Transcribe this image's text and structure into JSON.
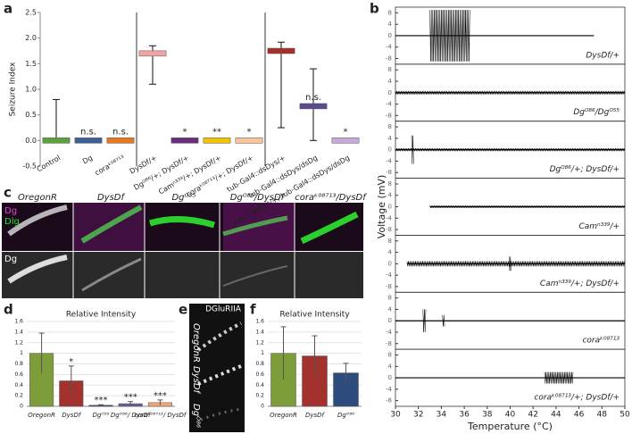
{
  "chart_data": [
    {
      "type": "errorbar",
      "panel": "a",
      "ylabel": "Seizure Index",
      "categories": [
        "Control",
        "Dg",
        "coraᵏ⁰⁸⁷¹³",
        "DysDf/+",
        "Dgᴼ⁸⁶/+; DysDf/+",
        "Camⁿ³³⁹/+; DysDf/+",
        "coraᵏ⁰⁸⁷¹³/+; DysDf/+",
        "tub-Gal4::dsDys/+",
        "tub-Gal4::dsDys/dsDg",
        "tub-Gal80ᵗˢ/+; tub-Gal4::dsDys/dsDg"
      ],
      "values": [
        0,
        0,
        0,
        1.7,
        0,
        0,
        0,
        1.75,
        0.67,
        0
      ],
      "lower": [
        0,
        null,
        null,
        1.1,
        null,
        null,
        null,
        0.25,
        0,
        null
      ],
      "upper": [
        0.8,
        null,
        null,
        1.85,
        null,
        null,
        null,
        1.92,
        1.4,
        null
      ],
      "annotations": [
        null,
        "n.s.",
        "n.s.",
        null,
        "*",
        "**",
        "*",
        null,
        "n.s.",
        "*"
      ],
      "colors": [
        "#5aa33c",
        "#3d5f97",
        "#e8771e",
        "#f2a3a3",
        "#6c2c7c",
        "#f2c200",
        "#f7c49c",
        "#a3302b",
        "#5b4b8c",
        "#c9a9d9"
      ],
      "ylim": [
        -0.5,
        2.5
      ],
      "yticks": [
        -0.5,
        {
          "value": 0,
          "label": "0.0"
        },
        0.5,
        {
          "value": 1,
          "label": "1.0"
        },
        1.5,
        {
          "value": 2,
          "label": "2.0"
        },
        2.5
      ]
    },
    {
      "type": "trace",
      "panel": "b",
      "xlabel": "Temperature (°C)",
      "ylabel": "Voltage (mV)",
      "xlim": [
        30,
        50
      ],
      "xticks": [
        30,
        32,
        34,
        36,
        38,
        40,
        42,
        44,
        46,
        48,
        50
      ],
      "ylim": [
        -10,
        10
      ],
      "yticks": [
        -8,
        -4,
        0,
        4,
        8
      ],
      "traces": [
        {
          "label": "DysDf/+",
          "span": [
            30,
            47.3
          ],
          "events": [
            {
              "x": [
                33,
                36.5
              ],
              "amp": 9
            }
          ]
        },
        {
          "label": "Dgᴼ⁸⁶/Dgᴼ⁵⁵",
          "span": [
            30,
            50
          ],
          "events": [
            {
              "x": [
                30,
                50
              ],
              "amp": 0.6
            }
          ]
        },
        {
          "label": "Dgᴼ⁸⁶/+; DysDf/+",
          "span": [
            30,
            50
          ],
          "events": [
            {
              "x": [
                31.4,
                31.6
              ],
              "amp": 5
            },
            {
              "x": [
                30,
                50
              ],
              "amp": 0.5
            }
          ]
        },
        {
          "label": "Camⁿ³³⁹/+",
          "span": [
            33,
            50
          ],
          "events": [
            {
              "x": [
                33,
                50
              ],
              "amp": 0.4
            }
          ]
        },
        {
          "label": "Camⁿ³³⁹/+; DysDf/+",
          "span": [
            31,
            50
          ],
          "events": [
            {
              "x": [
                31,
                50
              ],
              "amp": 0.9
            },
            {
              "x": [
                39.9,
                40.1
              ],
              "amp": 2.5
            }
          ]
        },
        {
          "label": "coraᵏ⁰⁸⁷¹³",
          "span": [
            30,
            50
          ],
          "events": [
            {
              "x": [
                32.4,
                32.7
              ],
              "amp": 4
            },
            {
              "x": [
                34.1,
                34.3
              ],
              "amp": 2
            }
          ]
        },
        {
          "label": "coraᵏ⁰⁸⁷¹³/+; DysDf/+",
          "span": [
            30,
            50
          ],
          "events": [
            {
              "x": [
                43,
                45.5
              ],
              "amp": 2
            }
          ]
        }
      ]
    },
    {
      "type": "bar",
      "panel": "d",
      "title": "Relative Intensity",
      "categories": [
        "OregonR",
        "DysDf",
        "Dgᴼ⁵⁵",
        "Dgᴼ⁸⁶/ DysDf",
        "coraᵏ⁰⁸⁷¹³/ DysDf"
      ],
      "values": [
        1.0,
        0.48,
        0.02,
        0.05,
        0.07
      ],
      "errors": [
        0.38,
        0.28,
        0.01,
        0.04,
        0.05
      ],
      "annotations": [
        null,
        "*",
        "***",
        "***",
        "***"
      ],
      "colors": [
        "#7d9d3b",
        "#a3322f",
        "#2d4b7c",
        "#6b5b9b",
        "#f2a474"
      ],
      "ylim": [
        0,
        1.6
      ],
      "yticks": [
        0,
        0.2,
        0.4,
        0.6,
        0.8,
        1,
        1.2,
        1.4,
        1.6
      ]
    },
    {
      "type": "bar",
      "panel": "f",
      "title": "Relative Intensity",
      "categories": [
        "OregonR",
        "DysDf",
        "Dgᴼ⁸⁶"
      ],
      "values": [
        1.0,
        0.95,
        0.63
      ],
      "errors": [
        0.5,
        0.38,
        0.18
      ],
      "annotations": [
        null,
        null,
        null
      ],
      "colors": [
        "#7d9d3b",
        "#a3322f",
        "#2d4b7c"
      ],
      "ylim": [
        0,
        1.6
      ],
      "yticks": [
        0,
        0.2,
        0.4,
        0.6,
        0.8,
        1,
        1.2,
        1.4,
        1.6
      ]
    }
  ],
  "panel_c": {
    "letter": "c",
    "columns": [
      "OregonR",
      "DysDf",
      "Dgᴼ⁵⁵",
      "Dgᴼ⁸⁶/DysDf",
      "coraᵏ⁰⁸⁷¹³/DysDf"
    ],
    "rows": [
      "Dg",
      "Dlg",
      "Dg"
    ]
  },
  "panel_e": {
    "letter": "e",
    "title": "DGluRIIA",
    "rows": [
      "OregonR",
      "DysDf",
      "Dgᴼ⁸⁶"
    ]
  }
}
